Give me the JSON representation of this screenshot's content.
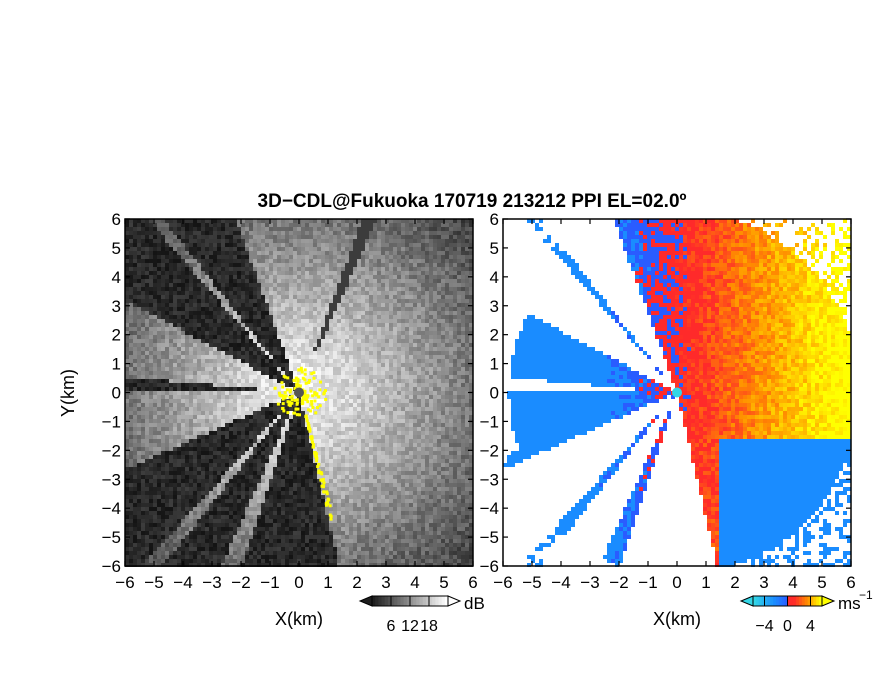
{
  "title": "3D−CDL@Fukuoka 170719 213212 PPI EL=02.0º",
  "colors": {
    "snr_dark": "#1e1e1e",
    "snr_light": "#ffffff",
    "snr_flag": "#ffff00",
    "radar_center": "#555555",
    "vel_center": "#33d6e6",
    "vel_neg_strong": "#1a8cff",
    "vel_neg_weak": "#2a5cff",
    "vel_zero": "#ff2a2a",
    "vel_pos_mid": "#ff8c00",
    "vel_pos_strong": "#ffff00"
  },
  "chart_data": [
    {
      "type": "heatmap",
      "name": "snr",
      "xlabel": "X(km)",
      "ylabel": "Y(km)",
      "xlim": [
        -6,
        6
      ],
      "ylim": [
        -6,
        6
      ],
      "xticks": [
        "−6",
        "−5",
        "−4",
        "−3",
        "−2",
        "−1",
        "0",
        "1",
        "2",
        "3",
        "4",
        "5",
        "6"
      ],
      "yticks": [
        "6",
        "5",
        "4",
        "3",
        "2",
        "1",
        "0",
        "−1",
        "−2",
        "−3",
        "−4",
        "−5",
        "−6"
      ],
      "colorbar": {
        "unit": "dB",
        "ticks": [
          "6",
          "12",
          "18"
        ],
        "range": [
          0,
          24
        ]
      },
      "blocked_sectors_deg": [
        [
          110,
          128
        ],
        [
          131,
          152
        ],
        [
          175,
          180
        ],
        [
          204,
          228
        ],
        [
          232,
          246
        ],
        [
          252,
          283
        ]
      ]
    },
    {
      "type": "heatmap",
      "name": "doppler_velocity",
      "xlabel": "X(km)",
      "xlim": [
        -6,
        6
      ],
      "ylim": [
        -6,
        6
      ],
      "xticks": [
        "−6",
        "−5",
        "−4",
        "−3",
        "−2",
        "−1",
        "0",
        "1",
        "2",
        "3",
        "4",
        "5",
        "6"
      ],
      "yticks": [
        "6",
        "5",
        "4",
        "3",
        "2",
        "1",
        "0",
        "−1",
        "−2",
        "−3",
        "−4",
        "−5",
        "−6"
      ],
      "colorbar": {
        "unit": "ms",
        "unit_exponent": "−1",
        "ticks": [
          "−4",
          "0",
          "4"
        ],
        "range": [
          -6,
          6
        ]
      },
      "blocked_sectors_deg": [
        [
          110,
          128
        ],
        [
          131,
          152
        ],
        [
          175,
          180
        ],
        [
          204,
          228
        ],
        [
          232,
          246
        ],
        [
          252,
          283
        ]
      ]
    }
  ]
}
